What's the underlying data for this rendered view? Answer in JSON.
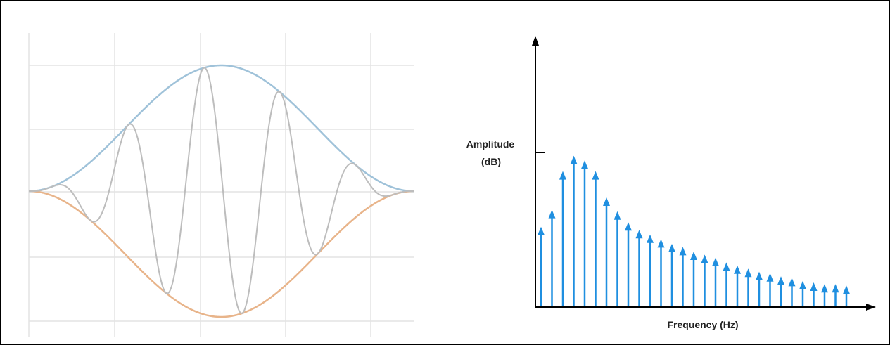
{
  "chart_data": [
    {
      "type": "line",
      "title": "",
      "xlabel": "",
      "ylabel": "",
      "grid": true,
      "series": [
        {
          "kind": "upper-envelope",
          "color": "#9fc2d9"
        },
        {
          "kind": "lower-envelope",
          "color": "#e8b48a"
        },
        {
          "kind": "modulated-wave",
          "color": "#bdbdbd"
        }
      ]
    },
    {
      "type": "bar",
      "style": "stem-arrows",
      "xlabel": "Frequency (Hz)",
      "ylabel_line1": "Amplitude",
      "ylabel_line2": "(dB)",
      "ylim": [
        0,
        1
      ],
      "ytick": 1.0,
      "color": "#1f8fe0",
      "values": [
        0.51,
        0.62,
        0.87,
        0.97,
        0.94,
        0.87,
        0.7,
        0.61,
        0.54,
        0.49,
        0.46,
        0.43,
        0.4,
        0.38,
        0.35,
        0.33,
        0.31,
        0.28,
        0.26,
        0.24,
        0.22,
        0.21,
        0.19,
        0.18,
        0.16,
        0.15,
        0.14,
        0.14,
        0.13
      ]
    }
  ]
}
